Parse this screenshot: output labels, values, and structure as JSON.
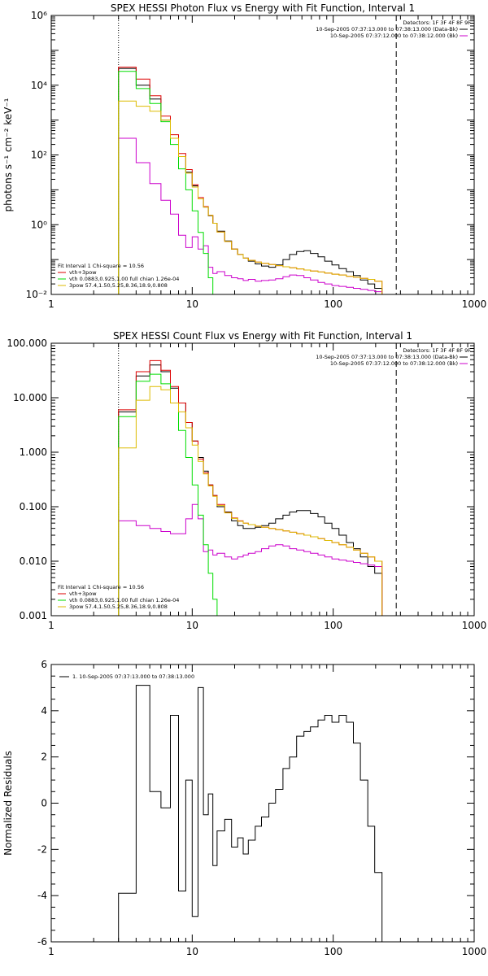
{
  "chart_data": [
    {
      "type": "line",
      "title": "SPEX HESSI Photon Flux vs Energy with Fit Function, Interval 1",
      "ylabel": "photons s⁻¹ cm⁻² keV⁻¹",
      "xscale": "log",
      "yscale": "log",
      "xlim": [
        1,
        1000
      ],
      "ylim": [
        0.01,
        1000000
      ],
      "x_ticks": [
        1,
        10,
        100,
        1000
      ],
      "x_tick_labels": [
        "1",
        "10",
        "100",
        "1000"
      ],
      "y_ticks": [
        0.01,
        1,
        100,
        10000,
        1000000
      ],
      "y_tick_labels": [
        "10⁻²",
        "10⁰",
        "10²",
        "10⁴",
        "10⁶"
      ],
      "x_edges": [
        3,
        4,
        5,
        6,
        7,
        8,
        9,
        10,
        11,
        12,
        13,
        14,
        15,
        17,
        19,
        21,
        23,
        25,
        28,
        31,
        35,
        39,
        44,
        49,
        55,
        62,
        69,
        78,
        87,
        98,
        110,
        124,
        139,
        156,
        176,
        197,
        222,
        280
      ],
      "vlines": [
        3,
        280
      ],
      "legend_top_right": {
        "detectors": "Detectors: 1F 3F 4F 8F 9F",
        "entries": [
          {
            "label": "10-Sep-2005 07:37:13.000 to 07:38:13.000 (Data-Bk)",
            "color": "#000000"
          },
          {
            "label": "10-Sep-2005 07:37:12.000 to 07:38:12.000 (Bk)",
            "color": "#cc00cc"
          }
        ]
      },
      "legend_bottom_left": {
        "header": "Fit Interval 1    Chi-square = 10.56",
        "entries": [
          {
            "label": "vth+3pow",
            "color": "#dd0000"
          },
          {
            "label": "vth 0.0883,0.925,1.00  full chian 1.26e-04",
            "color": "#00dd00"
          },
          {
            "label": "3pow 57.4,1.50,5.25,8.36,18.9,0.808",
            "color": "#ddbb00"
          }
        ]
      },
      "series": [
        {
          "name": "Data-Bk",
          "color": "#000000",
          "values": [
            30000,
            10000,
            4000,
            1000,
            300,
            90,
            32,
            13,
            5.5,
            3.2,
            1.8,
            1.1,
            0.65,
            0.34,
            0.2,
            0.14,
            0.11,
            0.09,
            0.075,
            0.065,
            0.06,
            0.07,
            0.1,
            0.14,
            0.17,
            0.18,
            0.15,
            0.12,
            0.09,
            0.07,
            0.055,
            0.045,
            0.035,
            0.026,
            0.02,
            0.015
          ]
        },
        {
          "name": "Bk",
          "color": "#cc00cc",
          "values": [
            300,
            60,
            15,
            5,
            2,
            0.5,
            0.22,
            0.45,
            0.2,
            0.25,
            0.06,
            0.04,
            0.045,
            0.035,
            0.03,
            0.028,
            0.025,
            0.027,
            0.024,
            0.025,
            0.026,
            0.028,
            0.032,
            0.036,
            0.035,
            0.03,
            0.026,
            0.022,
            0.02,
            0.018,
            0.017,
            0.016,
            0.015,
            0.014,
            0.013,
            0.012
          ]
        },
        {
          "name": "vth+3pow",
          "color": "#dd0000",
          "values": [
            33000,
            15000,
            5000,
            1300,
            380,
            110,
            38,
            14,
            6,
            3.3,
            1.85,
            1.1,
            0.62,
            0.33,
            0.2,
            0.14,
            0.11,
            0.095,
            0.085,
            0.078,
            0.072,
            0.067,
            0.062,
            0.058,
            0.054,
            0.05,
            0.047,
            0.044,
            0.041,
            0.038,
            0.036,
            0.033,
            0.031,
            0.029,
            0.027,
            0.024
          ]
        },
        {
          "name": "vth",
          "color": "#00dd00",
          "values": [
            25000,
            8000,
            3000,
            900,
            200,
            40,
            10,
            2.5,
            0.6,
            0.15,
            0.03,
            0.01,
            0.003
          ]
        },
        {
          "name": "3pow",
          "color": "#ddbb00",
          "values": [
            3500,
            2500,
            1800,
            1000,
            300,
            90,
            30,
            12,
            5.5,
            3.2,
            1.85,
            1.1,
            0.62,
            0.33,
            0.2,
            0.14,
            0.11,
            0.095,
            0.085,
            0.078,
            0.072,
            0.067,
            0.062,
            0.058,
            0.054,
            0.05,
            0.047,
            0.044,
            0.041,
            0.038,
            0.036,
            0.033,
            0.031,
            0.029,
            0.027,
            0.024
          ]
        }
      ]
    },
    {
      "type": "line",
      "title": "SPEX HESSI Count Flux vs Energy with Fit Function, Interval 1",
      "ylabel": "",
      "xscale": "log",
      "yscale": "log",
      "xlim": [
        1,
        1000
      ],
      "ylim": [
        0.001,
        100
      ],
      "x_ticks": [
        1,
        10,
        100,
        1000
      ],
      "x_tick_labels": [
        "1",
        "10",
        "100",
        "1000"
      ],
      "y_ticks": [
        0.001,
        0.01,
        0.1,
        1,
        10,
        100
      ],
      "y_tick_labels": [
        "0.001",
        "0.010",
        "0.100",
        "1.000",
        "10.000",
        "100.000"
      ],
      "x_edges": [
        3,
        4,
        5,
        6,
        7,
        8,
        9,
        10,
        11,
        12,
        13,
        14,
        15,
        17,
        19,
        21,
        23,
        25,
        28,
        31,
        35,
        39,
        44,
        49,
        55,
        62,
        69,
        78,
        87,
        98,
        110,
        124,
        139,
        156,
        176,
        197,
        222,
        280
      ],
      "vlines": [
        3,
        280
      ],
      "legend_top_right": {
        "detectors": "Detectors: 1F 3F 4F 8F 9F",
        "entries": [
          {
            "label": "10-Sep-2005 07:37:13.000 to 07:38:13.000 (Data-Bk)",
            "color": "#000000"
          },
          {
            "label": "10-Sep-2005 07:37:12.000 to 07:38:12.000 (Bk)",
            "color": "#cc00cc"
          }
        ]
      },
      "legend_bottom_left": {
        "header": "Fit Interval 1    Chi-square = 10.56",
        "entries": [
          {
            "label": "vth+3pow",
            "color": "#dd0000"
          },
          {
            "label": "vth 0.0883,0.925,1.00  full chian 1.26e-04",
            "color": "#00dd00"
          },
          {
            "label": "3pow 57.4,1.50,5.25,8.36,18.9,0.808",
            "color": "#ddbb00"
          }
        ]
      },
      "series": [
        {
          "name": "Data-Bk",
          "color": "#000000",
          "values": [
            5.5,
            25,
            40,
            30,
            15,
            8,
            3.5,
            1.6,
            0.8,
            0.45,
            0.25,
            0.16,
            0.1,
            0.08,
            0.055,
            0.045,
            0.04,
            0.04,
            0.042,
            0.045,
            0.05,
            0.06,
            0.07,
            0.08,
            0.085,
            0.085,
            0.075,
            0.065,
            0.05,
            0.04,
            0.03,
            0.022,
            0.017,
            0.012,
            0.008,
            0.006
          ]
        },
        {
          "name": "Bk",
          "color": "#cc00cc",
          "values": [
            0.055,
            0.045,
            0.04,
            0.035,
            0.032,
            0.032,
            0.06,
            0.11,
            0.06,
            0.015,
            0.016,
            0.013,
            0.014,
            0.012,
            0.011,
            0.012,
            0.013,
            0.014,
            0.015,
            0.017,
            0.019,
            0.02,
            0.019,
            0.017,
            0.016,
            0.015,
            0.014,
            0.013,
            0.012,
            0.011,
            0.0105,
            0.01,
            0.0095,
            0.009,
            0.0085,
            0.008
          ]
        },
        {
          "name": "vth+3pow",
          "color": "#dd0000",
          "values": [
            6,
            30,
            48,
            32,
            16,
            8,
            3.5,
            1.6,
            0.75,
            0.42,
            0.25,
            0.16,
            0.11,
            0.078,
            0.062,
            0.055,
            0.05,
            0.047,
            0.044,
            0.042,
            0.04,
            0.038,
            0.036,
            0.034,
            0.032,
            0.03,
            0.028,
            0.026,
            0.024,
            0.022,
            0.02,
            0.018,
            0.016,
            0.014,
            0.012,
            0.01
          ]
        },
        {
          "name": "vth",
          "color": "#00dd00",
          "values": [
            4.5,
            20,
            27,
            18,
            8,
            2.5,
            0.8,
            0.25,
            0.07,
            0.02,
            0.006,
            0.002,
            0.001
          ]
        },
        {
          "name": "3pow",
          "color": "#ddbb00",
          "values": [
            1.2,
            9,
            16,
            14,
            8,
            5.5,
            2.8,
            1.35,
            0.68,
            0.4,
            0.24,
            0.155,
            0.105,
            0.077,
            0.061,
            0.054,
            0.05,
            0.047,
            0.044,
            0.042,
            0.04,
            0.038,
            0.036,
            0.034,
            0.032,
            0.03,
            0.028,
            0.026,
            0.024,
            0.022,
            0.02,
            0.018,
            0.016,
            0.014,
            0.012,
            0.01
          ]
        }
      ]
    },
    {
      "type": "line",
      "title": "",
      "ylabel": "Normalized Residuals",
      "xscale": "log",
      "yscale": "linear",
      "xlim": [
        1,
        1000
      ],
      "ylim": [
        -6,
        6
      ],
      "x_ticks": [
        1,
        10,
        100,
        1000
      ],
      "x_tick_labels": [
        "1",
        "10",
        "100",
        "1000"
      ],
      "y_ticks": [
        -6,
        -4,
        -2,
        0,
        2,
        4,
        6
      ],
      "y_tick_labels": [
        "-6",
        "-4",
        "-2",
        "0",
        "2",
        "4",
        "6"
      ],
      "x_edges": [
        3,
        4,
        5,
        6,
        7,
        8,
        9,
        10,
        11,
        12,
        13,
        14,
        15,
        17,
        19,
        21,
        23,
        25,
        28,
        31,
        35,
        39,
        44,
        49,
        55,
        62,
        69,
        78,
        87,
        98,
        110,
        124,
        139,
        156,
        176,
        197,
        222,
        280
      ],
      "vlines": [],
      "legend_top_left": {
        "entries": [
          {
            "label": "1. 10-Sep-2005 07:37:13.000 to 07:38:13.000",
            "color": "#000000"
          }
        ]
      },
      "series": [
        {
          "name": "1. 10-Sep-2005 07:37:13.000 to 07:38:13.000",
          "color": "#000000",
          "values": [
            -3.9,
            5.1,
            0.5,
            -0.2,
            3.8,
            -3.8,
            1.0,
            -4.9,
            5.0,
            -0.5,
            0.4,
            -2.7,
            -1.2,
            -0.7,
            -1.9,
            -1.5,
            -2.2,
            -1.6,
            -1.0,
            -0.6,
            0.0,
            0.6,
            1.5,
            2.0,
            2.9,
            3.1,
            3.3,
            3.6,
            3.8,
            3.5,
            3.8,
            3.5,
            2.6,
            1.0,
            -1.0,
            -3.0,
            -6.0
          ]
        }
      ]
    }
  ]
}
